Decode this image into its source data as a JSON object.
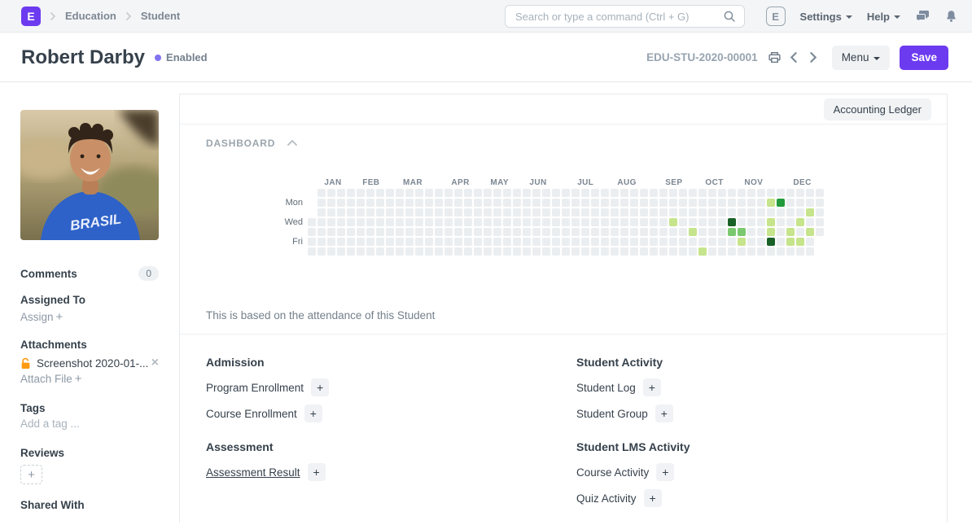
{
  "navbar": {
    "logo_letter": "E",
    "breadcrumbs": [
      "Education",
      "Student"
    ],
    "search_placeholder": "Search or type a command (Ctrl + G)",
    "user_initial": "E",
    "settings_label": "Settings",
    "help_label": "Help"
  },
  "header": {
    "title": "Robert Darby",
    "status_label": "Enabled",
    "doc_id": "EDU-STU-2020-00001",
    "menu_label": "Menu",
    "save_label": "Save"
  },
  "sidebar": {
    "comments_label": "Comments",
    "comments_count": "0",
    "assigned_to_heading": "Assigned To",
    "assign_action": "Assign",
    "attachments_heading": "Attachments",
    "attachment_name": "Screenshot 2020-01-...",
    "attach_file_action": "Attach File",
    "tags_heading": "Tags",
    "add_tag_placeholder": "Add a tag ...",
    "reviews_heading": "Reviews",
    "shared_with_heading": "Shared With"
  },
  "main": {
    "accounting_ledger_label": "Accounting Ledger",
    "dashboard_heading": "DASHBOARD",
    "attendance_note": "This is based on the attendance of this Student",
    "form_columns": [
      {
        "sections": [
          {
            "title": "Admission",
            "links": [
              {
                "label": "Program Enrollment"
              },
              {
                "label": "Course Enrollment"
              }
            ]
          },
          {
            "title": "Assessment",
            "links": [
              {
                "label": "Assessment Result",
                "underline": true
              }
            ]
          }
        ]
      },
      {
        "sections": [
          {
            "title": "Student Activity",
            "links": [
              {
                "label": "Student Log"
              },
              {
                "label": "Student Group"
              }
            ]
          },
          {
            "title": "Student LMS Activity",
            "links": [
              {
                "label": "Course Activity"
              },
              {
                "label": "Quiz Activity"
              }
            ]
          }
        ]
      }
    ]
  },
  "icons": {
    "plus": "+",
    "close": "×"
  },
  "colors": {
    "accent": "#6c3bf0",
    "status_dot": "#8273f0",
    "attachment_lock": "#ff9b13"
  },
  "chart_data": {
    "type": "heatmap",
    "caption": "This is based on the attendance of this Student",
    "weeks": 53,
    "rows": [
      "Sun",
      "Mon",
      "Tue",
      "Wed",
      "Thu",
      "Fri",
      "Sat"
    ],
    "day_labels": [
      {
        "label": "Mon",
        "row": 1
      },
      {
        "label": "Wed",
        "row": 3
      },
      {
        "label": "Fri",
        "row": 5
      }
    ],
    "months": [
      {
        "label": "JAN",
        "col": 1.7
      },
      {
        "label": "FEB",
        "col": 5.6
      },
      {
        "label": "MAR",
        "col": 9.75
      },
      {
        "label": "APR",
        "col": 14.7
      },
      {
        "label": "MAY",
        "col": 18.7
      },
      {
        "label": "JUN",
        "col": 22.7
      },
      {
        "label": "JUL",
        "col": 27.6
      },
      {
        "label": "AUG",
        "col": 31.7
      },
      {
        "label": "SEP",
        "col": 36.6
      },
      {
        "label": "OCT",
        "col": 40.7
      },
      {
        "label": "NOV",
        "col": 44.7
      },
      {
        "label": "DEC",
        "col": 49.7
      }
    ],
    "first_week_start_row": 3,
    "last_week_end_row": 4,
    "palette": [
      "#ebeef0",
      "#c6e48b",
      "#7bc96f",
      "#239a3b",
      "#196127"
    ],
    "cells": [
      {
        "row": 1,
        "col": 47,
        "level": 1
      },
      {
        "row": 1,
        "col": 48,
        "level": 3
      },
      {
        "row": 2,
        "col": 51,
        "level": 1
      },
      {
        "row": 3,
        "col": 37,
        "level": 1
      },
      {
        "row": 3,
        "col": 43,
        "level": 4
      },
      {
        "row": 3,
        "col": 47,
        "level": 1
      },
      {
        "row": 3,
        "col": 50,
        "level": 1
      },
      {
        "row": 4,
        "col": 39,
        "level": 1
      },
      {
        "row": 4,
        "col": 43,
        "level": 2
      },
      {
        "row": 4,
        "col": 44,
        "level": 2
      },
      {
        "row": 4,
        "col": 47,
        "level": 1
      },
      {
        "row": 4,
        "col": 49,
        "level": 1
      },
      {
        "row": 4,
        "col": 51,
        "level": 1
      },
      {
        "row": 5,
        "col": 44,
        "level": 1
      },
      {
        "row": 5,
        "col": 47,
        "level": 4
      },
      {
        "row": 5,
        "col": 49,
        "level": 1
      },
      {
        "row": 5,
        "col": 50,
        "level": 1
      },
      {
        "row": 6,
        "col": 40,
        "level": 1
      }
    ]
  }
}
